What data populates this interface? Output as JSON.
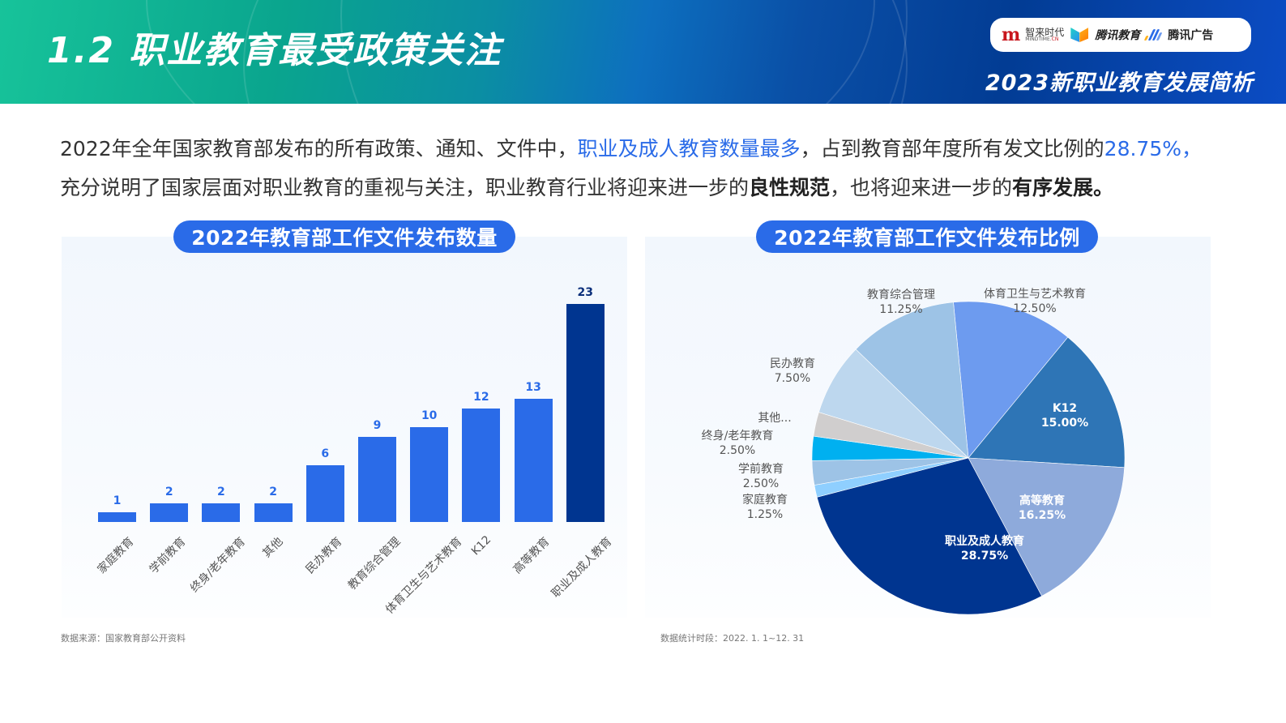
{
  "header": {
    "title": "1.2  职业教育最受政策关注",
    "subtitle": "2023新职业教育发展简析",
    "logos": {
      "mindtime_cn": "智来时代",
      "mindtime_en_a": "MINDTIME.",
      "mindtime_en_b": "CN",
      "tencent_edu": "腾讯教育",
      "tencent_ad": "腾讯广告"
    }
  },
  "intro": {
    "part1": "2022年全年国家教育部发布的所有政策、通知、文件中，",
    "highlight1": "职业及成人教育数量最多",
    "part2": "，占到教育部年度所有发文比例的",
    "highlight2": "28.75%",
    "part3": "，",
    "part4": "充分说明了国家层面对职业教育的重视与关注，职业教育行业将迎来进一步的",
    "bold1": "良性规范",
    "part5": "，也将迎来进一步的",
    "bold2": "有序发展",
    "part6": "。"
  },
  "colors": {
    "accent": "#2a6be8",
    "bar_max": "#003590"
  },
  "footnotes": {
    "left": "数据来源：国家教育部公开资料",
    "right": "数据统计时段：2022. 1. 1~12. 31"
  },
  "chart_data": [
    {
      "type": "bar",
      "title": "2022年教育部工作文件发布数量",
      "xlabel": "",
      "ylabel": "",
      "grid": false,
      "categories": [
        "家庭教育",
        "学前教育",
        "终身/老年教育",
        "其他",
        "民办教育",
        "教育综合管理",
        "体育卫生与艺术教育",
        "K12",
        "高等教育",
        "职业及成人教育"
      ],
      "values": [
        1,
        2,
        2,
        2,
        6,
        9,
        10,
        12,
        13,
        23
      ],
      "value_labels": [
        "1",
        "2",
        "2",
        "2",
        "6",
        "9",
        "10",
        "12",
        "13",
        "23"
      ],
      "ylim": [
        0,
        23
      ]
    },
    {
      "type": "pie",
      "title": "2022年教育部工作文件发布比例",
      "legend": "none",
      "slices": [
        {
          "label": "体育卫生与艺术教育",
          "value": 12.5,
          "pct": "12.50%",
          "color": "#6d9bef"
        },
        {
          "label": "K12",
          "value": 15.0,
          "pct": "15.00%",
          "color": "#2e75b6"
        },
        {
          "label": "高等教育",
          "value": 16.25,
          "pct": "16.25%",
          "color": "#8eaadb"
        },
        {
          "label": "职业及成人教育",
          "value": 28.75,
          "pct": "28.75%",
          "color": "#003590"
        },
        {
          "label": "家庭教育",
          "value": 1.25,
          "pct": "1.25%",
          "color": "#8fcfff"
        },
        {
          "label": "学前教育",
          "value": 2.5,
          "pct": "2.50%",
          "color": "#9dc3e6"
        },
        {
          "label": "终身/老年教育",
          "value": 2.5,
          "pct": "2.50%",
          "color": "#00b0f0"
        },
        {
          "label": "其他...",
          "value": 2.5,
          "pct": "",
          "color": "#d0cece"
        },
        {
          "label": "民办教育",
          "value": 7.5,
          "pct": "7.50%",
          "color": "#bdd7ee"
        },
        {
          "label": "教育综合管理",
          "value": 11.25,
          "pct": "11.25%",
          "color": "#9dc3e6"
        }
      ]
    }
  ]
}
